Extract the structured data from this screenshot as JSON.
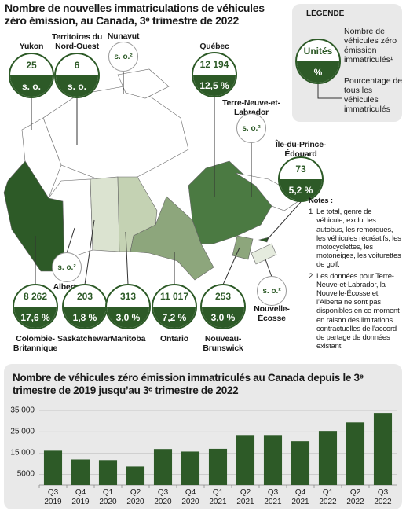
{
  "header": {
    "title": "Nombre de nouvelles immatriculations de véhicules zéro émission, au Canada, 3ᵉ trimestre de 2022"
  },
  "regions": [
    {
      "name": "Yukon",
      "count": "25",
      "share": "s. o."
    },
    {
      "name": "Territoires du Nord-Ouest",
      "count": "6",
      "share": "s. o."
    },
    {
      "name": "Nunavut",
      "status": "s. o.²"
    },
    {
      "name": "Québec",
      "count": "12 194",
      "share": "12,5 %"
    },
    {
      "name": "Terre-Neuve-et-Labrador",
      "status": "s. o.²"
    },
    {
      "name": "Île-du-Prince-Édouard",
      "count": "73",
      "share": "5,2 %"
    },
    {
      "name": "Alberta",
      "status": "s. o.²"
    },
    {
      "name": "Colombie-Britannique",
      "count": "8 262",
      "share": "17,6 %"
    },
    {
      "name": "Saskatchewan",
      "count": "203",
      "share": "1,8 %"
    },
    {
      "name": "Manitoba",
      "count": "313",
      "share": "3,0 %"
    },
    {
      "name": "Ontario",
      "count": "11 017",
      "share": "7,2 %"
    },
    {
      "name": "Nouveau-Brunswick",
      "count": "253",
      "share": "3,0 %"
    },
    {
      "name": "Nouvelle-Écosse",
      "status": "s. o.²"
    }
  ],
  "legend": {
    "title": "LÉGENDE",
    "top": "Unités",
    "bottom": "%",
    "count_label": "Nombre de véhicules zéro émission immatriculés¹",
    "share_label": "Pourcentage de tous les véhicules immatriculés"
  },
  "notes": {
    "title": "Notes :",
    "items": [
      {
        "number": "1",
        "text": "Le total, genre de véhicule, exclut les autobus, les remorques, les véhicules récréatifs, les motocyclettes, les motoneiges, les voiturettes de golf."
      },
      {
        "number": "2",
        "text": "Les données pour Terre-Neuve-et-Labrador, la Nouvelle-Écosse et l’Alberta ne sont pas disponibles en ce moment en raison des limitations contractuelles de l’accord de partage de données existant."
      }
    ]
  },
  "chart_data": {
    "type": "bar",
    "title": "Nombre de véhicules zéro émission immatriculés au Canada depuis le 3ᵉ trimestre de 2019 jusqu’au 3ᵉ trimestre de 2022",
    "categories": [
      "Q3\n2019",
      "Q4\n2019",
      "Q1\n2020",
      "Q2\n2020",
      "Q3\n2020",
      "Q4\n2020",
      "Q1\n2021",
      "Q2\n2021",
      "Q3\n2021",
      "Q4\n2021",
      "Q1\n2022",
      "Q2\n2022",
      "Q3\n2022"
    ],
    "values": [
      16100,
      12000,
      11700,
      8700,
      16900,
      15700,
      17000,
      23500,
      23500,
      20600,
      25400,
      29400,
      33900
    ],
    "color": "#2d5a27",
    "ylim": [
      0,
      38000
    ],
    "yticks": [
      5000,
      {
        "value": 15000,
        "label": "15 000"
      },
      {
        "value": 25000,
        "label": "25 000"
      },
      {
        "value": 35000,
        "label": "35 000"
      }
    ],
    "grid": true
  }
}
